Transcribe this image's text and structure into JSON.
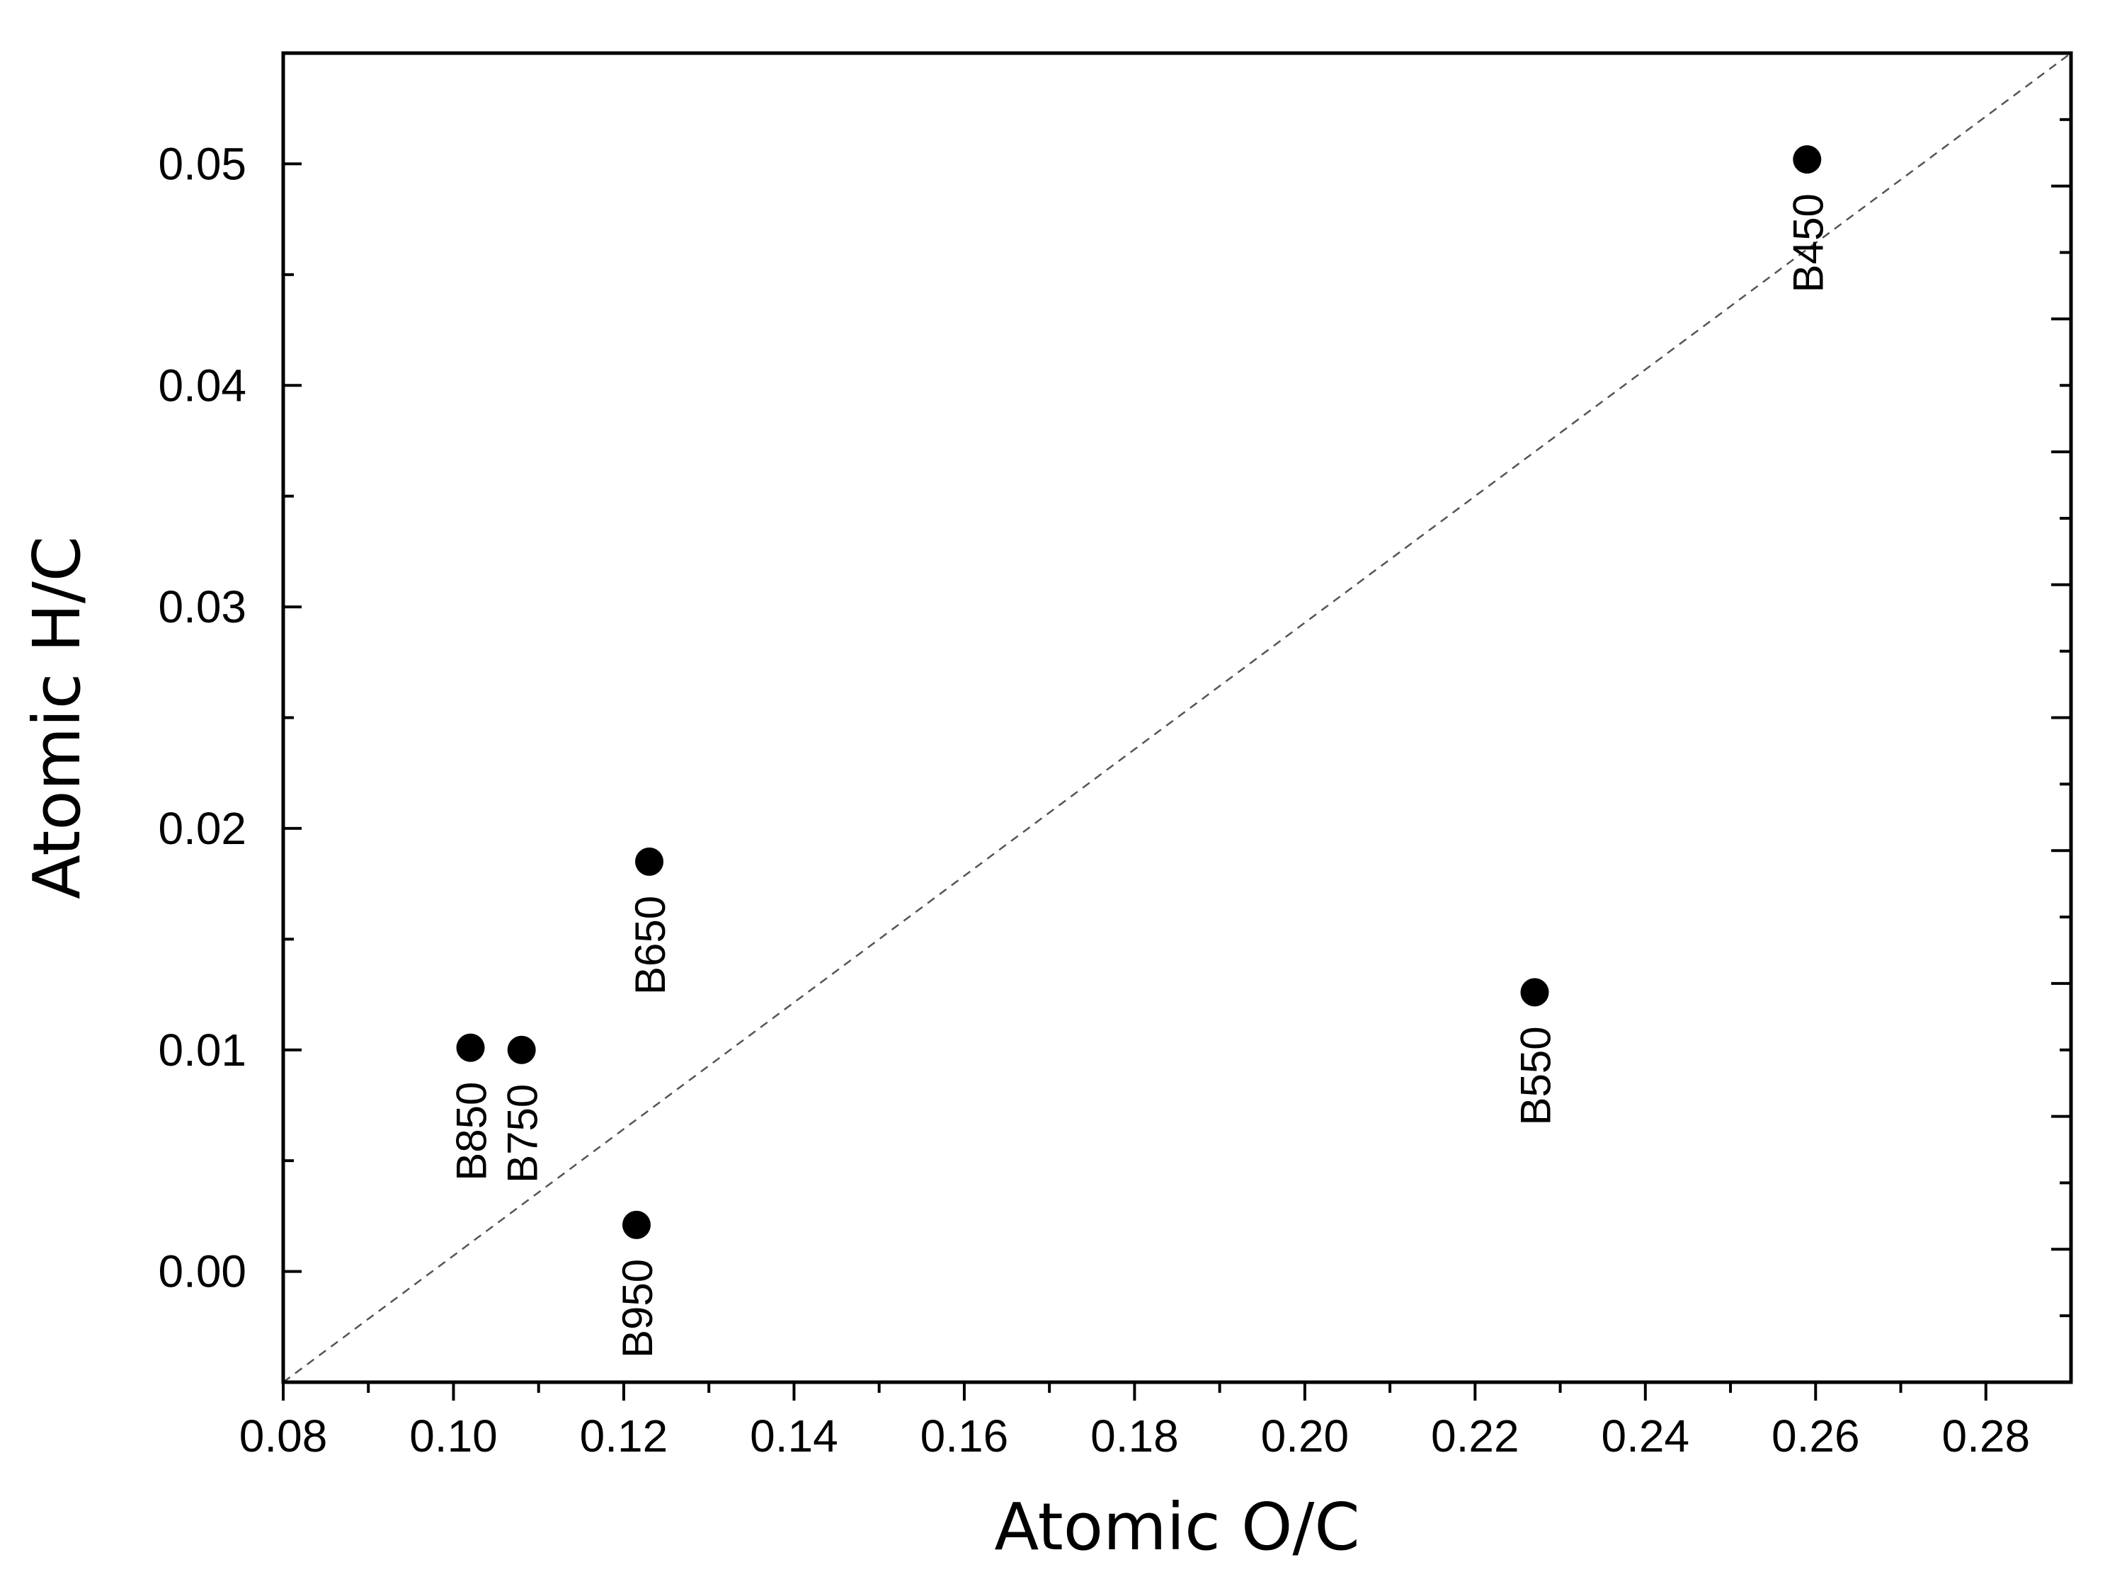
{
  "chart_data": {
    "type": "scatter",
    "title": "",
    "xlabel": "Atomic O/C",
    "ylabel": "Atomic H/C",
    "xlim": [
      0.08,
      0.29
    ],
    "ylim": [
      -0.005,
      0.055
    ],
    "xticks": [
      0.08,
      0.1,
      0.12,
      0.14,
      0.16,
      0.18,
      0.2,
      0.22,
      0.24,
      0.26,
      0.28
    ],
    "xtick_labels": [
      "0.08",
      "0.10",
      "0.12",
      "0.14",
      "0.16",
      "0.18",
      "0.20",
      "0.22",
      "0.24",
      "0.26",
      "0.28"
    ],
    "yticks": [
      0.0,
      0.01,
      0.02,
      0.03,
      0.04,
      0.05
    ],
    "ytick_labels": [
      "0.00",
      "0.01",
      "0.02",
      "0.03",
      "0.04",
      "0.05"
    ],
    "grid": false,
    "marker_color": "#000000",
    "points": [
      {
        "label": "B450",
        "x": 0.259,
        "y": 0.0502
      },
      {
        "label": "B550",
        "x": 0.227,
        "y": 0.0126
      },
      {
        "label": "B650",
        "x": 0.123,
        "y": 0.0185
      },
      {
        "label": "B750",
        "x": 0.108,
        "y": 0.01
      },
      {
        "label": "B850",
        "x": 0.102,
        "y": 0.0101
      },
      {
        "label": "B950",
        "x": 0.1215,
        "y": 0.0021
      }
    ],
    "reference_line": {
      "style": "dashed",
      "x": [
        0.08,
        0.29
      ],
      "y": [
        -0.005,
        0.055
      ]
    }
  }
}
